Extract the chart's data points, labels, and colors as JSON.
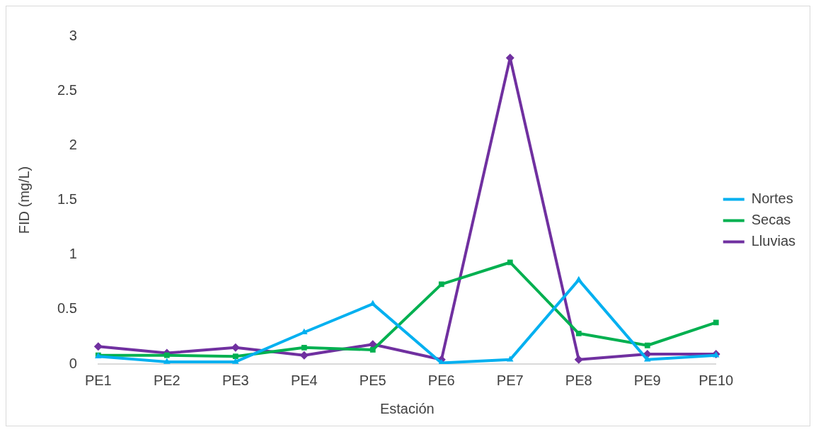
{
  "chart_data": {
    "type": "line",
    "xlabel": "Estación",
    "ylabel": "FID (mg/L)",
    "categories": [
      "PE1",
      "PE2",
      "PE3",
      "PE4",
      "PE5",
      "PE6",
      "PE7",
      "PE8",
      "PE9",
      "PE10"
    ],
    "series": [
      {
        "name": "Nortes",
        "color": "#00b0f0",
        "marker": "triangle",
        "values": [
          0.07,
          0.02,
          0.02,
          0.29,
          0.55,
          0.01,
          0.04,
          0.77,
          0.04,
          0.08
        ]
      },
      {
        "name": "Secas",
        "color": "#00b050",
        "marker": "square",
        "values": [
          0.08,
          0.08,
          0.07,
          0.15,
          0.13,
          0.73,
          0.93,
          0.28,
          0.17,
          0.38
        ]
      },
      {
        "name": "Lluvias",
        "color": "#7030a0",
        "marker": "diamond",
        "values": [
          0.16,
          0.1,
          0.15,
          0.08,
          0.18,
          0.04,
          2.8,
          0.04,
          0.09,
          0.09
        ]
      }
    ],
    "ylim": [
      0,
      3
    ],
    "yticks": [
      0,
      0.5,
      1,
      1.5,
      2,
      2.5,
      3
    ],
    "grid": false,
    "legend": "right",
    "line_style": "solid"
  }
}
